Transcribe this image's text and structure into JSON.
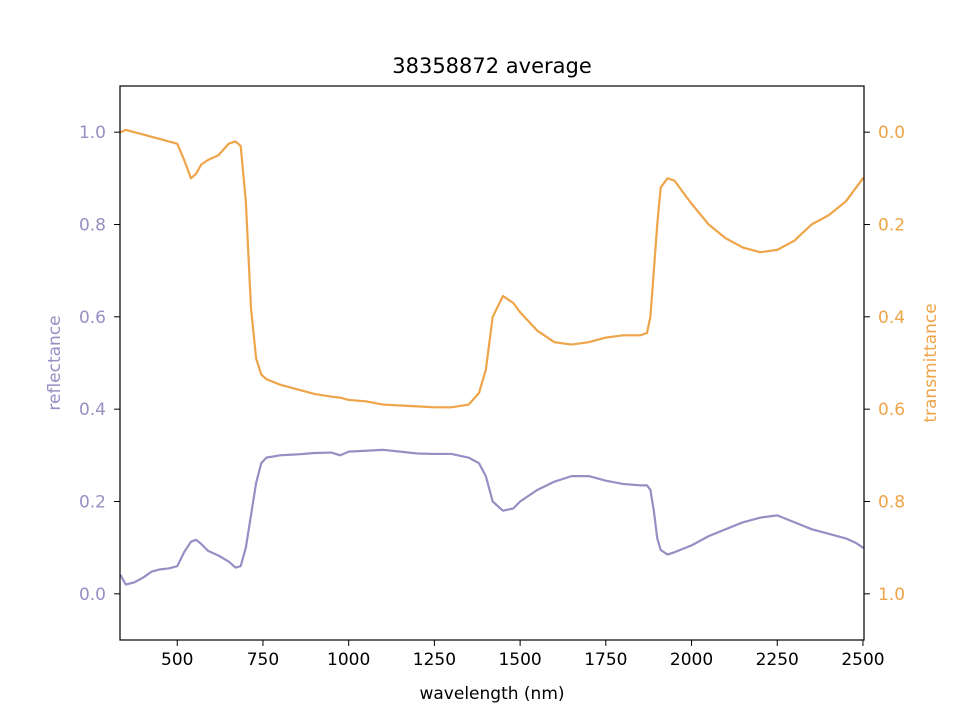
{
  "chart_data": {
    "type": "line",
    "title": "38358872 average",
    "xlabel": "wavelength (nm)",
    "ylabel": "reflectance",
    "y2label": "transmittance",
    "xlim": [
      333,
      2503
    ],
    "ylim": [
      -0.1,
      1.1
    ],
    "y2lim": [
      1.1,
      -0.1
    ],
    "y2_inverted": true,
    "grid": false,
    "x_ticks": [
      500,
      750,
      1000,
      1250,
      1500,
      1750,
      2000,
      2250,
      2500
    ],
    "x_tick_labels": [
      "500",
      "750",
      "1000",
      "1250",
      "1500",
      "1750",
      "2000",
      "2250",
      "2500"
    ],
    "y_ticks": [
      0.0,
      0.2,
      0.4,
      0.6,
      0.8,
      1.0
    ],
    "y_tick_labels": [
      "0.0",
      "0.2",
      "0.4",
      "0.6",
      "0.8",
      "1.0"
    ],
    "y2_ticks": [
      0.0,
      0.2,
      0.4,
      0.6,
      0.8,
      1.0
    ],
    "y2_tick_labels": [
      "0.0",
      "0.2",
      "0.4",
      "0.6",
      "0.8",
      "1.0"
    ],
    "colors": {
      "reflectance": "#9590c3",
      "transmittance": "#eea448",
      "axes": "#000000"
    },
    "series": [
      {
        "name": "reflectance",
        "axis": "left",
        "x": [
          335,
          350,
          375,
          400,
          425,
          450,
          475,
          500,
          520,
          540,
          555,
          570,
          590,
          620,
          650,
          670,
          685,
          700,
          715,
          730,
          745,
          760,
          800,
          850,
          900,
          950,
          975,
          1000,
          1050,
          1100,
          1150,
          1200,
          1250,
          1300,
          1350,
          1380,
          1400,
          1420,
          1450,
          1480,
          1500,
          1550,
          1600,
          1650,
          1700,
          1750,
          1800,
          1850,
          1870,
          1880,
          1890,
          1900,
          1910,
          1930,
          1950,
          2000,
          2050,
          2100,
          2150,
          2200,
          2250,
          2300,
          2350,
          2400,
          2450,
          2480,
          2500
        ],
        "values": [
          0.04,
          0.02,
          0.025,
          0.035,
          0.048,
          0.053,
          0.055,
          0.06,
          0.09,
          0.113,
          0.117,
          0.108,
          0.093,
          0.083,
          0.07,
          0.057,
          0.06,
          0.1,
          0.17,
          0.24,
          0.283,
          0.295,
          0.3,
          0.302,
          0.305,
          0.306,
          0.3,
          0.308,
          0.31,
          0.312,
          0.308,
          0.304,
          0.303,
          0.303,
          0.295,
          0.283,
          0.255,
          0.2,
          0.18,
          0.185,
          0.2,
          0.225,
          0.243,
          0.255,
          0.255,
          0.245,
          0.238,
          0.235,
          0.235,
          0.225,
          0.18,
          0.12,
          0.095,
          0.085,
          0.09,
          0.105,
          0.125,
          0.14,
          0.155,
          0.165,
          0.17,
          0.155,
          0.14,
          0.13,
          0.12,
          0.11,
          0.1
        ]
      },
      {
        "name": "transmittance",
        "axis": "right",
        "x": [
          335,
          350,
          375,
          400,
          425,
          450,
          475,
          500,
          520,
          540,
          555,
          570,
          590,
          620,
          650,
          670,
          685,
          700,
          715,
          730,
          745,
          760,
          800,
          850,
          900,
          950,
          975,
          1000,
          1050,
          1100,
          1150,
          1200,
          1250,
          1300,
          1350,
          1380,
          1400,
          1420,
          1450,
          1480,
          1500,
          1550,
          1600,
          1650,
          1700,
          1750,
          1800,
          1850,
          1870,
          1880,
          1890,
          1900,
          1910,
          1930,
          1950,
          2000,
          2050,
          2100,
          2150,
          2200,
          2250,
          2300,
          2350,
          2400,
          2450,
          2480,
          2500
        ],
        "values": [
          0.0,
          -0.005,
          0.0,
          0.005,
          0.01,
          0.015,
          0.02,
          0.025,
          0.06,
          0.1,
          0.09,
          0.07,
          0.06,
          0.05,
          0.025,
          0.02,
          0.03,
          0.15,
          0.38,
          0.49,
          0.525,
          0.535,
          0.547,
          0.557,
          0.567,
          0.573,
          0.575,
          0.58,
          0.583,
          0.59,
          0.592,
          0.594,
          0.596,
          0.596,
          0.59,
          0.565,
          0.515,
          0.4,
          0.355,
          0.37,
          0.39,
          0.43,
          0.455,
          0.46,
          0.455,
          0.445,
          0.44,
          0.44,
          0.435,
          0.4,
          0.3,
          0.2,
          0.12,
          0.1,
          0.105,
          0.155,
          0.2,
          0.23,
          0.25,
          0.26,
          0.255,
          0.235,
          0.2,
          0.18,
          0.15,
          0.12,
          0.1
        ]
      }
    ]
  }
}
